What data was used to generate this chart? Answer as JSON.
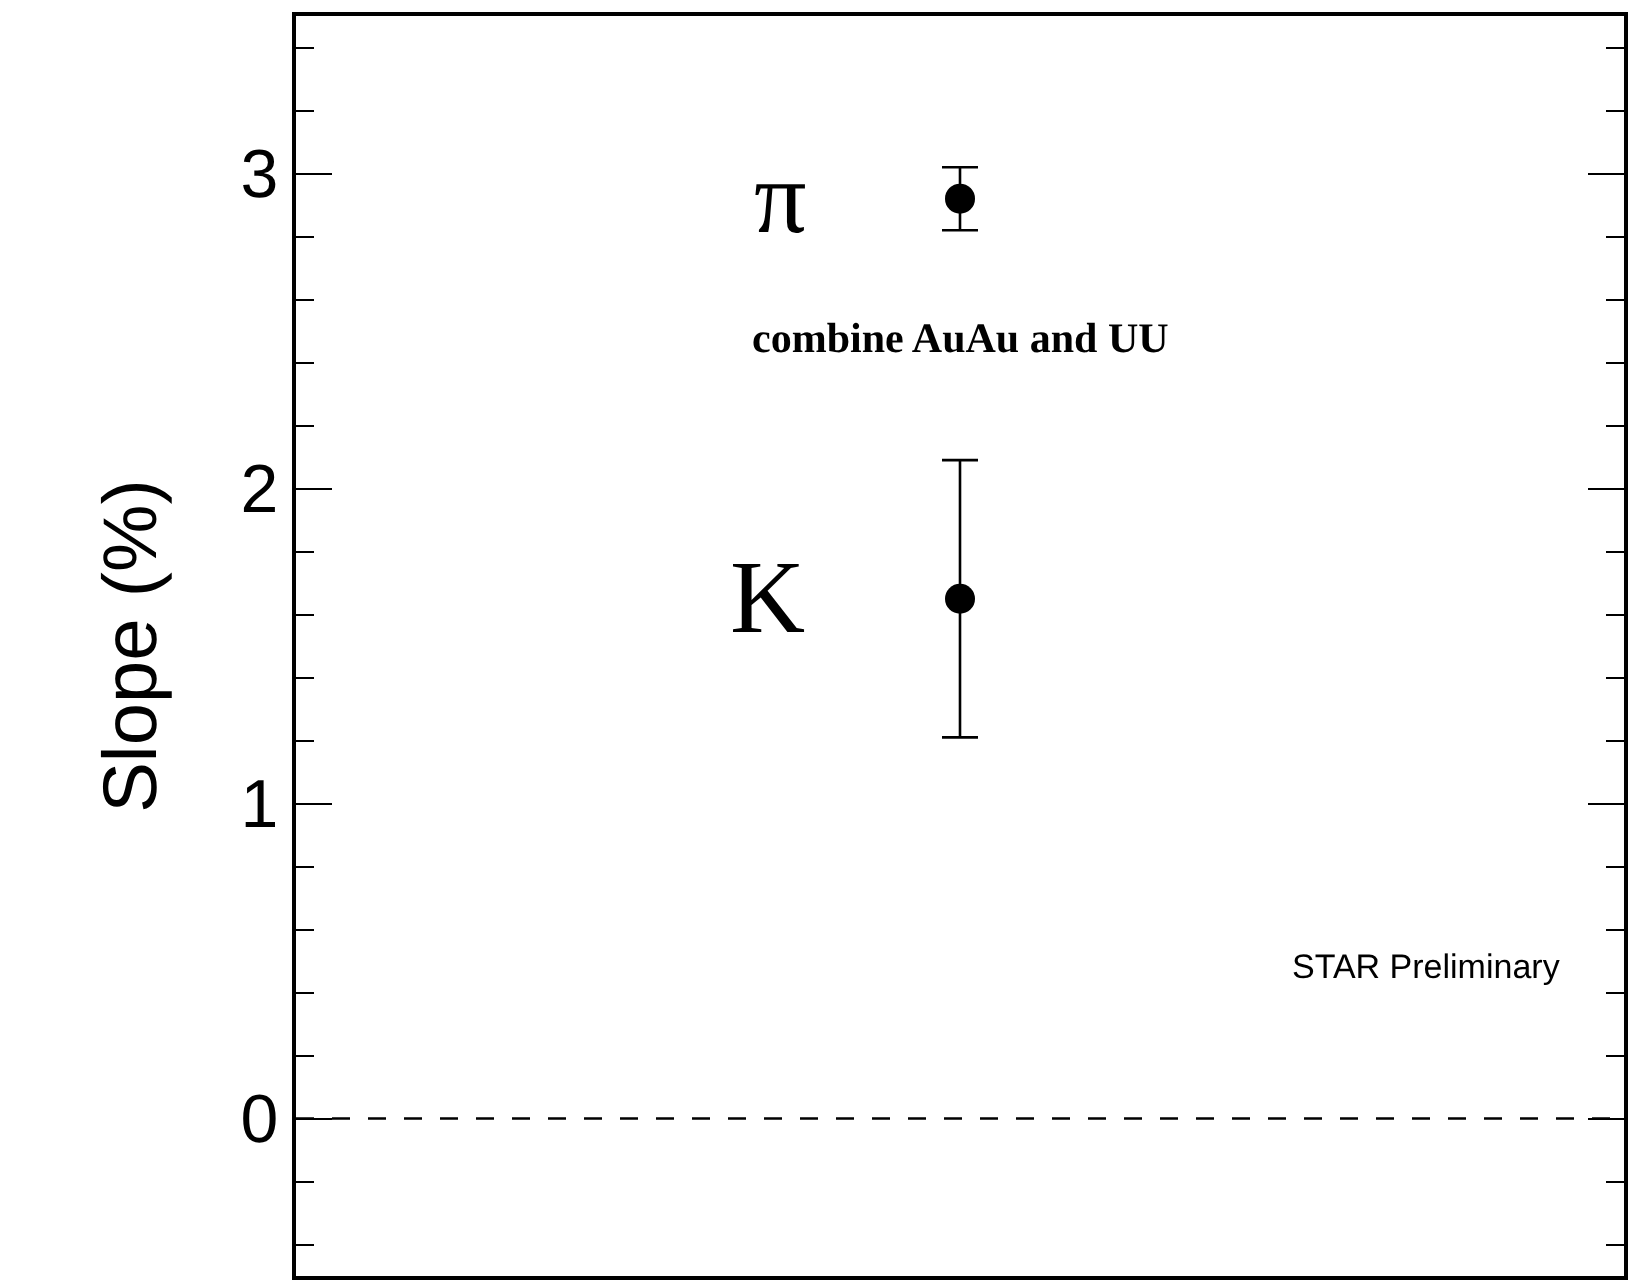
{
  "chart_data": {
    "type": "scatter",
    "ylabel": "Slope (%)",
    "categories": [
      null
    ],
    "series": [
      {
        "name": "π",
        "color": "#000000",
        "values": [
          2.92
        ],
        "errors": [
          0.1
        ]
      },
      {
        "name": "K",
        "color": "#000000",
        "values": [
          1.65
        ],
        "errors": [
          0.44
        ]
      }
    ],
    "ylim": [
      -0.5,
      3.5
    ],
    "yticks": [
      0,
      1,
      2,
      3
    ],
    "annotations": [
      "combine AuAu and UU",
      "STAR Preliminary"
    ],
    "ref_lines": [
      {
        "axis": "y",
        "value": 0,
        "line_style": "dashed",
        "color": "#000000"
      }
    ],
    "marker": "circle",
    "grid": false,
    "legend": false,
    "tick_labels": "y"
  }
}
